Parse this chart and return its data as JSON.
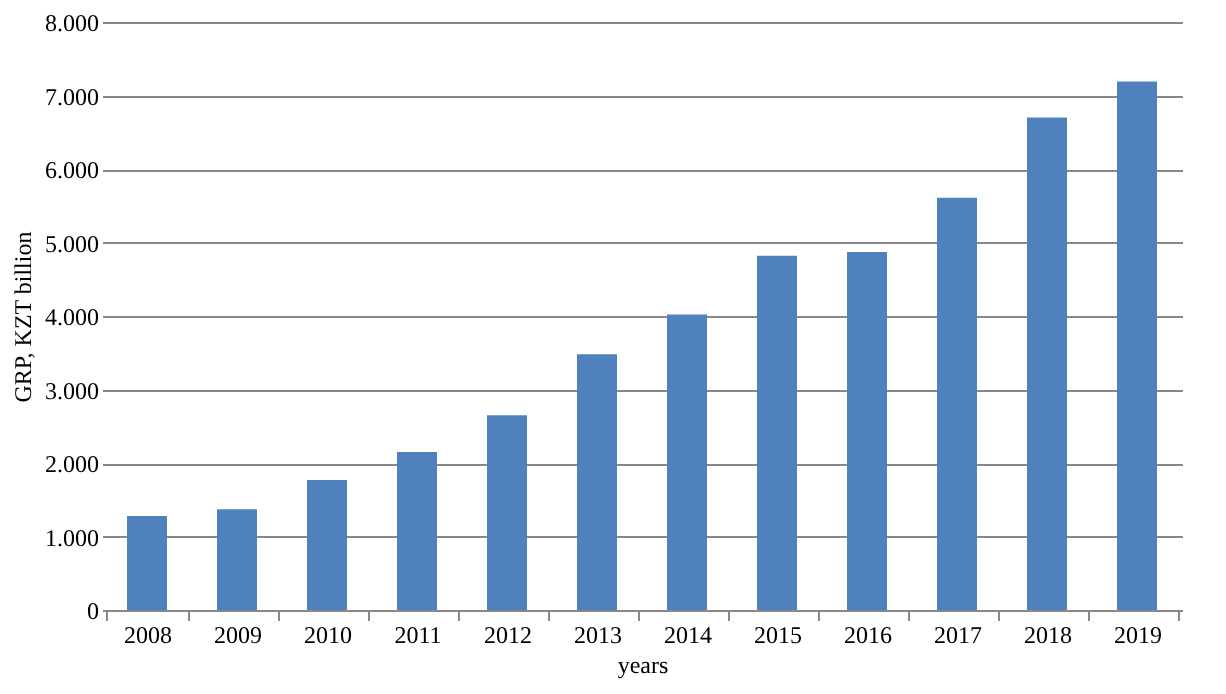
{
  "chart_data": {
    "type": "bar",
    "xlabel": "years",
    "ylabel": "GRP, KZT billion",
    "categories": [
      "2008",
      "2009",
      "2010",
      "2011",
      "2012",
      "2013",
      "2014",
      "2015",
      "2016",
      "2017",
      "2018",
      "2019"
    ],
    "values": [
      1280,
      1370,
      1770,
      2150,
      2650,
      3480,
      4020,
      4820,
      4870,
      5610,
      6700,
      7190
    ],
    "color": "#4f81bd",
    "ylim": [
      0,
      8000
    ],
    "yticks": [
      0,
      {
        "value": 1000,
        "label": "1.000"
      },
      {
        "value": 2000,
        "label": "2.000"
      },
      {
        "value": 3000,
        "label": "3.000"
      },
      {
        "value": 4000,
        "label": "4.000"
      },
      {
        "value": 5000,
        "label": "5.000"
      },
      {
        "value": 6000,
        "label": "6.000"
      },
      {
        "value": 7000,
        "label": "7.000"
      },
      {
        "value": 8000,
        "label": "8.000"
      }
    ],
    "grid": "y"
  }
}
